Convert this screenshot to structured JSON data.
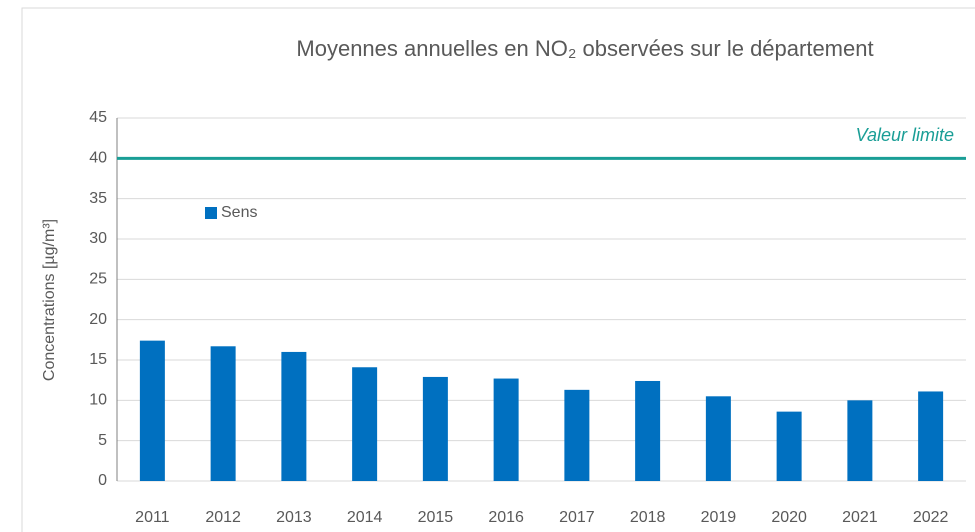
{
  "chart_data": {
    "type": "bar",
    "title": "Moyennes annuelles en NO₂ observées sur le département",
    "y_label": "Concentrations [µg/m³]",
    "categories": [
      "2011",
      "2012",
      "2013",
      "2014",
      "2015",
      "2016",
      "2017",
      "2018",
      "2019",
      "2020",
      "2021",
      "2022"
    ],
    "series": [
      {
        "name": "Sens",
        "color": "#0070c0",
        "values": [
          17.4,
          16.7,
          16.0,
          14.1,
          12.9,
          12.7,
          11.3,
          12.4,
          10.5,
          8.6,
          10.0,
          11.1
        ]
      }
    ],
    "ylim": [
      0,
      45
    ],
    "yticks": [
      0,
      5,
      10,
      15,
      20,
      25,
      30,
      35,
      40,
      45
    ],
    "grid": true,
    "legend": "upper-left",
    "reference_line": {
      "label": "Valeur limite",
      "value": 40,
      "color": "#1a9e96"
    }
  }
}
